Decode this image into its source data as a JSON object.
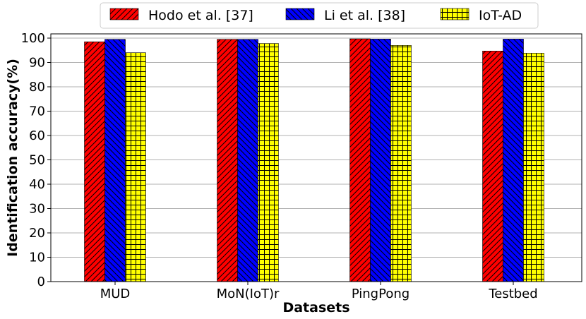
{
  "chart_data": {
    "type": "bar",
    "categories": [
      "MUD",
      "MoN(IoT)r",
      "PingPong",
      "Testbed"
    ],
    "series": [
      {
        "name": "Hodo et al. [37]",
        "values": [
          98.5,
          99.5,
          99.7,
          94.7
        ],
        "color": "#ff0000",
        "hatch": "diagonal"
      },
      {
        "name": "Li et al. [38]",
        "values": [
          99.5,
          99.5,
          99.6,
          99.6
        ],
        "color": "#0000ff",
        "hatch": "anti-diagonal"
      },
      {
        "name": "IoT-AD",
        "values": [
          94.0,
          97.8,
          97.0,
          93.8
        ],
        "color": "#ffff00",
        "hatch": "grid"
      }
    ],
    "xlabel": "Datasets",
    "ylabel": "Identification accuracy(%)",
    "ylim": [
      0,
      100
    ],
    "yticks": [
      "0",
      "10",
      "20",
      "30",
      "40",
      "50",
      "60",
      "70",
      "80",
      "90",
      "100"
    ],
    "grid": "horizontal",
    "legend_position": "top-center"
  }
}
